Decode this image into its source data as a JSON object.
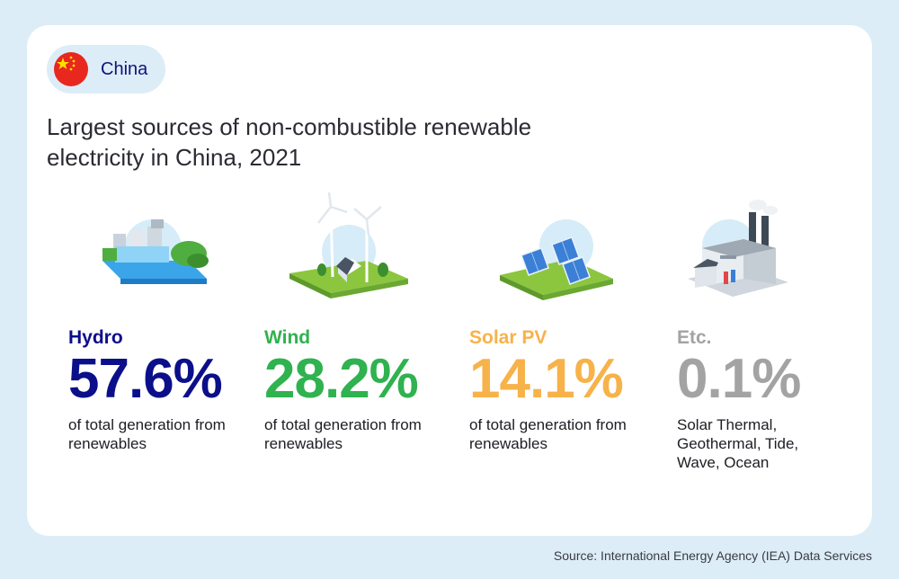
{
  "badge": {
    "country": "China"
  },
  "heading": {
    "line1": "Largest sources of non-combustible renewable",
    "line2": "electricity in China, 2021"
  },
  "stats": [
    {
      "name": "Hydro",
      "value": "57.6%",
      "desc": "of total generation from renewables",
      "color": "#0c0f8a"
    },
    {
      "name": "Wind",
      "value": "28.2%",
      "desc": "of total generation from renewables",
      "color": "#2fb24f"
    },
    {
      "name": "Solar PV",
      "value": "14.1%",
      "desc": "of total generation from renewables",
      "color": "#f7b24a"
    },
    {
      "name": "Etc.",
      "value": "0.1%",
      "desc": "Solar Thermal, Geothermal, Tide, Wave, Ocean",
      "color": "#a3a3a3"
    }
  ],
  "icons": [
    "china-flag-icon",
    "hydro-dam-icon",
    "wind-turbine-icon",
    "solar-panel-icon",
    "factory-icon"
  ],
  "source": "Source: International Energy Agency (IEA) Data Services"
}
